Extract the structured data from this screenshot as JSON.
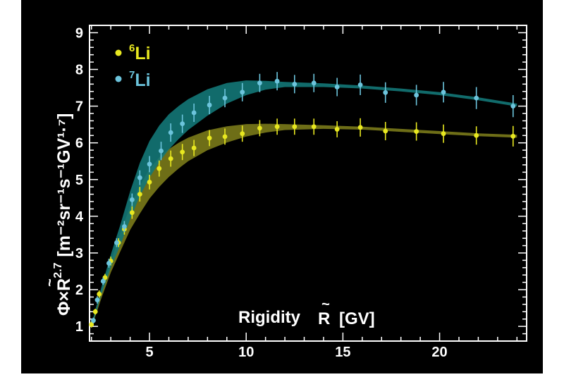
{
  "chart_data": {
    "type": "scatter",
    "title": "",
    "xlabel": "Rigidity R [GV]",
    "ylabel": "Φ×R^2.7 [m^-2 sr^-1 s^-1 GV^1.7]",
    "xlim": [
      1.9,
      24.5
    ],
    "ylim": [
      0.6,
      9.2
    ],
    "x_ticks": [
      5,
      10,
      15,
      20
    ],
    "y_ticks": [
      1,
      2,
      3,
      4,
      5,
      6,
      7,
      8,
      9
    ],
    "grid": false,
    "legend_position": "top-left",
    "series": [
      {
        "name": "6Li",
        "isotope_mass": "6",
        "element": "Li",
        "color": "#e8e820",
        "band_color": "#7a7a1a",
        "points": [
          {
            "x": 2.0,
            "y": 1.05,
            "err": 0.08
          },
          {
            "x": 2.2,
            "y": 1.4,
            "err": 0.08
          },
          {
            "x": 2.4,
            "y": 1.88,
            "err": 0.1
          },
          {
            "x": 2.7,
            "y": 2.33,
            "err": 0.1
          },
          {
            "x": 3.0,
            "y": 2.78,
            "err": 0.12
          },
          {
            "x": 3.4,
            "y": 3.28,
            "err": 0.12
          },
          {
            "x": 3.7,
            "y": 3.65,
            "err": 0.15
          },
          {
            "x": 4.1,
            "y": 4.1,
            "err": 0.17
          },
          {
            "x": 4.5,
            "y": 4.6,
            "err": 0.2
          },
          {
            "x": 5.0,
            "y": 4.93,
            "err": 0.2
          },
          {
            "x": 5.5,
            "y": 5.3,
            "err": 0.22
          },
          {
            "x": 6.1,
            "y": 5.57,
            "err": 0.22
          },
          {
            "x": 6.7,
            "y": 5.75,
            "err": 0.22
          },
          {
            "x": 7.3,
            "y": 5.86,
            "err": 0.22
          },
          {
            "x": 8.1,
            "y": 6.13,
            "err": 0.22
          },
          {
            "x": 8.9,
            "y": 6.17,
            "err": 0.22
          },
          {
            "x": 9.8,
            "y": 6.25,
            "err": 0.22
          },
          {
            "x": 10.7,
            "y": 6.4,
            "err": 0.22
          },
          {
            "x": 11.6,
            "y": 6.44,
            "err": 0.22
          },
          {
            "x": 12.5,
            "y": 6.44,
            "err": 0.22
          },
          {
            "x": 13.5,
            "y": 6.44,
            "err": 0.22
          },
          {
            "x": 14.7,
            "y": 6.37,
            "err": 0.22
          },
          {
            "x": 15.9,
            "y": 6.42,
            "err": 0.25
          },
          {
            "x": 17.2,
            "y": 6.32,
            "err": 0.25
          },
          {
            "x": 18.8,
            "y": 6.31,
            "err": 0.25
          },
          {
            "x": 20.2,
            "y": 6.25,
            "err": 0.25
          },
          {
            "x": 21.9,
            "y": 6.2,
            "err": 0.25
          },
          {
            "x": 23.8,
            "y": 6.18,
            "err": 0.28
          }
        ],
        "band": {
          "x": [
            2.0,
            2.5,
            3.0,
            3.5,
            4.0,
            4.5,
            5.0,
            5.5,
            6.0,
            6.5,
            7.0,
            8.0,
            9.0,
            10.0,
            11.0,
            12.0,
            14.0,
            16.0,
            18.0,
            20.0,
            22.0,
            24.0
          ],
          "y": [
            1.0,
            1.85,
            2.62,
            3.3,
            3.95,
            4.45,
            4.88,
            5.2,
            5.45,
            5.65,
            5.82,
            6.07,
            6.23,
            6.34,
            6.4,
            6.43,
            6.43,
            6.4,
            6.34,
            6.28,
            6.22,
            6.18
          ],
          "half_width": [
            0.05,
            0.1,
            0.15,
            0.25,
            0.32,
            0.38,
            0.4,
            0.4,
            0.38,
            0.35,
            0.32,
            0.27,
            0.22,
            0.17,
            0.12,
            0.08,
            0.05,
            0.04,
            0.04,
            0.04,
            0.04,
            0.04
          ]
        }
      },
      {
        "name": "7Li",
        "isotope_mass": "7",
        "element": "Li",
        "color": "#6cc4dc",
        "band_color": "#137777",
        "points": [
          {
            "x": 2.1,
            "y": 1.16,
            "err": 0.08
          },
          {
            "x": 2.3,
            "y": 1.72,
            "err": 0.1
          },
          {
            "x": 2.6,
            "y": 2.23,
            "err": 0.1
          },
          {
            "x": 2.9,
            "y": 2.72,
            "err": 0.12
          },
          {
            "x": 3.3,
            "y": 3.28,
            "err": 0.12
          },
          {
            "x": 3.7,
            "y": 3.72,
            "err": 0.15
          },
          {
            "x": 4.1,
            "y": 4.45,
            "err": 0.17
          },
          {
            "x": 4.5,
            "y": 5.05,
            "err": 0.2
          },
          {
            "x": 5.0,
            "y": 5.42,
            "err": 0.22
          },
          {
            "x": 5.6,
            "y": 5.78,
            "err": 0.25
          },
          {
            "x": 6.1,
            "y": 6.28,
            "err": 0.25
          },
          {
            "x": 6.7,
            "y": 6.52,
            "err": 0.25
          },
          {
            "x": 7.3,
            "y": 6.82,
            "err": 0.25
          },
          {
            "x": 8.1,
            "y": 7.03,
            "err": 0.25
          },
          {
            "x": 8.9,
            "y": 7.22,
            "err": 0.25
          },
          {
            "x": 9.8,
            "y": 7.38,
            "err": 0.25
          },
          {
            "x": 10.7,
            "y": 7.63,
            "err": 0.25
          },
          {
            "x": 11.6,
            "y": 7.68,
            "err": 0.25
          },
          {
            "x": 12.5,
            "y": 7.6,
            "err": 0.25
          },
          {
            "x": 13.5,
            "y": 7.63,
            "err": 0.25
          },
          {
            "x": 14.7,
            "y": 7.52,
            "err": 0.25
          },
          {
            "x": 15.9,
            "y": 7.58,
            "err": 0.28
          },
          {
            "x": 17.2,
            "y": 7.37,
            "err": 0.28
          },
          {
            "x": 18.8,
            "y": 7.3,
            "err": 0.28
          },
          {
            "x": 20.2,
            "y": 7.38,
            "err": 0.28
          },
          {
            "x": 21.9,
            "y": 7.22,
            "err": 0.3
          },
          {
            "x": 23.8,
            "y": 7.0,
            "err": 0.3
          }
        ],
        "band": {
          "x": [
            2.0,
            2.5,
            3.0,
            3.5,
            4.0,
            4.5,
            5.0,
            5.5,
            6.0,
            6.5,
            7.0,
            8.0,
            9.0,
            10.0,
            11.0,
            12.0,
            14.0,
            16.0,
            18.0,
            20.0,
            22.0,
            24.0
          ],
          "y": [
            1.0,
            1.95,
            2.78,
            3.5,
            4.3,
            5.0,
            5.55,
            5.97,
            6.3,
            6.55,
            6.77,
            7.1,
            7.35,
            7.5,
            7.57,
            7.59,
            7.57,
            7.52,
            7.44,
            7.34,
            7.2,
            7.03
          ],
          "half_width": [
            0.05,
            0.1,
            0.18,
            0.28,
            0.38,
            0.45,
            0.5,
            0.5,
            0.48,
            0.45,
            0.42,
            0.36,
            0.28,
            0.2,
            0.12,
            0.07,
            0.05,
            0.04,
            0.04,
            0.04,
            0.04,
            0.04
          ]
        }
      }
    ]
  },
  "axis": {
    "y_symbol": "Φ×R",
    "y_exponent": "2.7",
    "y_units": "[m⁻²sr⁻¹s⁻¹GV¹·⁷]",
    "x_name": "Rigidity",
    "x_symbol": "R",
    "x_units": "[GV]"
  }
}
